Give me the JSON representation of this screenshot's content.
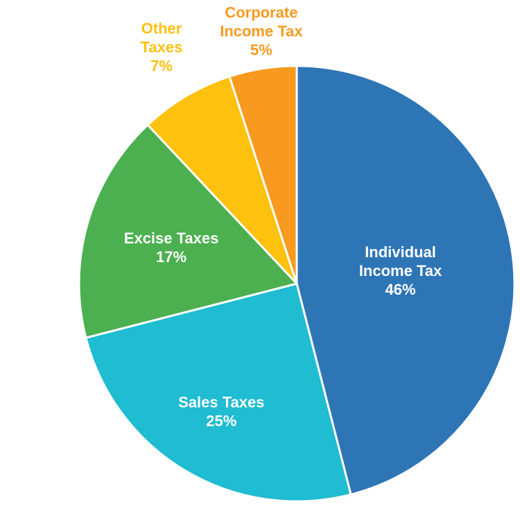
{
  "chart_data": {
    "type": "pie",
    "title": "",
    "slices": [
      {
        "label_lines": [
          "Individual",
          "Income Tax"
        ],
        "pct_text": "46%",
        "value": 46,
        "color": "#2e75b6",
        "label_color": "#ffffff"
      },
      {
        "label_lines": [
          "Sales Taxes"
        ],
        "pct_text": "25%",
        "value": 25,
        "color": "#1fbcd2",
        "label_color": "#ffffff"
      },
      {
        "label_lines": [
          "Excise Taxes"
        ],
        "pct_text": "17%",
        "value": 17,
        "color": "#4cb050",
        "label_color": "#ffffff"
      },
      {
        "label_lines": [
          "Other",
          "Taxes"
        ],
        "pct_text": "7%",
        "value": 7,
        "color": "#fdc10e",
        "label_color": "#fdc10e"
      },
      {
        "label_lines": [
          "Corporate",
          "Income Tax"
        ],
        "pct_text": "5%",
        "value": 5,
        "color": "#f79a1f",
        "label_color": "#f79a1f"
      }
    ]
  }
}
